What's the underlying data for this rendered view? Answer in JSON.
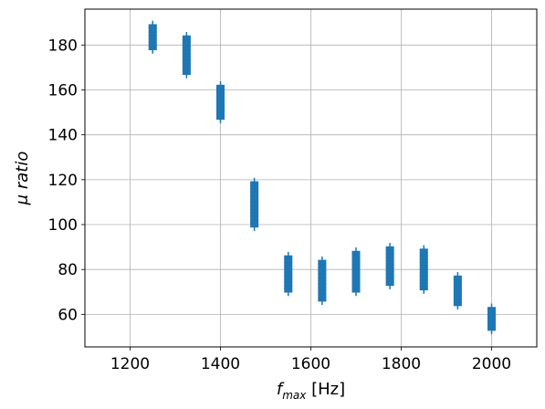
{
  "chart_data": {
    "type": "scatter",
    "xlabel": "f_max [Hz]",
    "xlabel_base": "f",
    "xlabel_sub": "max",
    "xlabel_unit": " [Hz]",
    "ylabel": "μ ratio",
    "xlim": [
      1100,
      2100
    ],
    "ylim": [
      45.5,
      196
    ],
    "xticks": [
      1200,
      1400,
      1600,
      1800,
      2000
    ],
    "yticks": [
      60,
      80,
      100,
      120,
      140,
      160,
      180
    ],
    "grid": true,
    "marker": "+",
    "series": [
      {
        "color": "#1f77b4",
        "groups": [
          {
            "x": 1250,
            "y_min": 178,
            "y_max": 189
          },
          {
            "x": 1325,
            "y_min": 167,
            "y_max": 184
          },
          {
            "x": 1400,
            "y_min": 147,
            "y_max": 162
          },
          {
            "x": 1475,
            "y_min": 99,
            "y_max": 119
          },
          {
            "x": 1550,
            "y_min": 70,
            "y_max": 86
          },
          {
            "x": 1625,
            "y_min": 66,
            "y_max": 84
          },
          {
            "x": 1700,
            "y_min": 70,
            "y_max": 88
          },
          {
            "x": 1775,
            "y_min": 73,
            "y_max": 90
          },
          {
            "x": 1850,
            "y_min": 71,
            "y_max": 89
          },
          {
            "x": 1925,
            "y_min": 64,
            "y_max": 77
          },
          {
            "x": 2000,
            "y_min": 53,
            "y_max": 63
          }
        ]
      }
    ]
  }
}
